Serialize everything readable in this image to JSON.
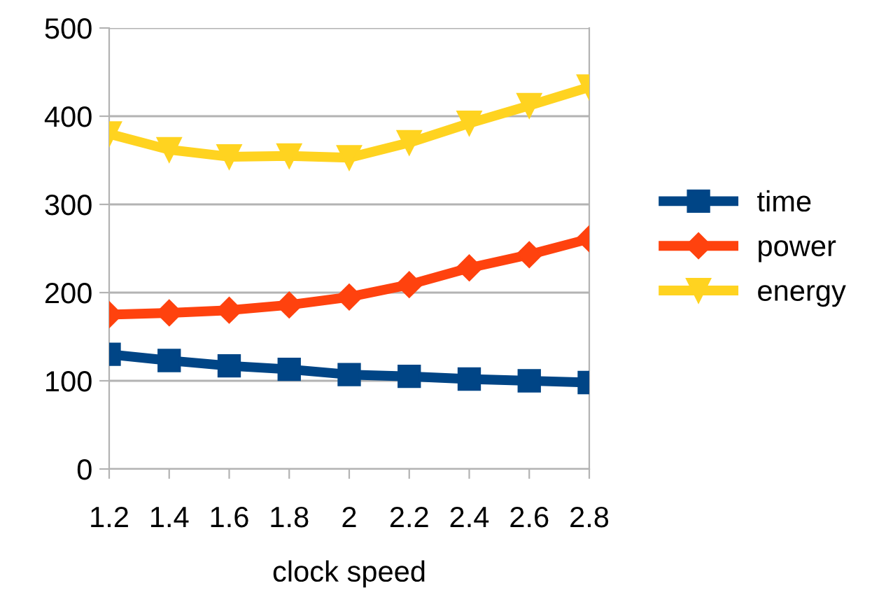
{
  "chart_data": {
    "type": "line",
    "xlabel": "clock speed",
    "categories": [
      "1.2",
      "1.4",
      "1.6",
      "1.8",
      "2",
      "2.2",
      "2.4",
      "2.6",
      "2.8"
    ],
    "series": [
      {
        "name": "time",
        "color": "#004586",
        "marker": "square",
        "values": [
          130,
          123,
          117,
          113,
          107,
          105,
          102,
          100,
          98
        ]
      },
      {
        "name": "power",
        "color": "#ff420e",
        "marker": "diamond",
        "values": [
          175,
          177,
          180,
          186,
          195,
          209,
          228,
          243,
          261
        ]
      },
      {
        "name": "energy",
        "color": "#ffd320",
        "marker": "triangle",
        "values": [
          380,
          362,
          354,
          355,
          353,
          370,
          392,
          412,
          433
        ]
      }
    ],
    "ylim": [
      0,
      500
    ],
    "yticks": [
      0,
      100,
      200,
      300,
      400,
      500
    ],
    "grid": "y",
    "legend": "right",
    "line_style": "solid"
  }
}
